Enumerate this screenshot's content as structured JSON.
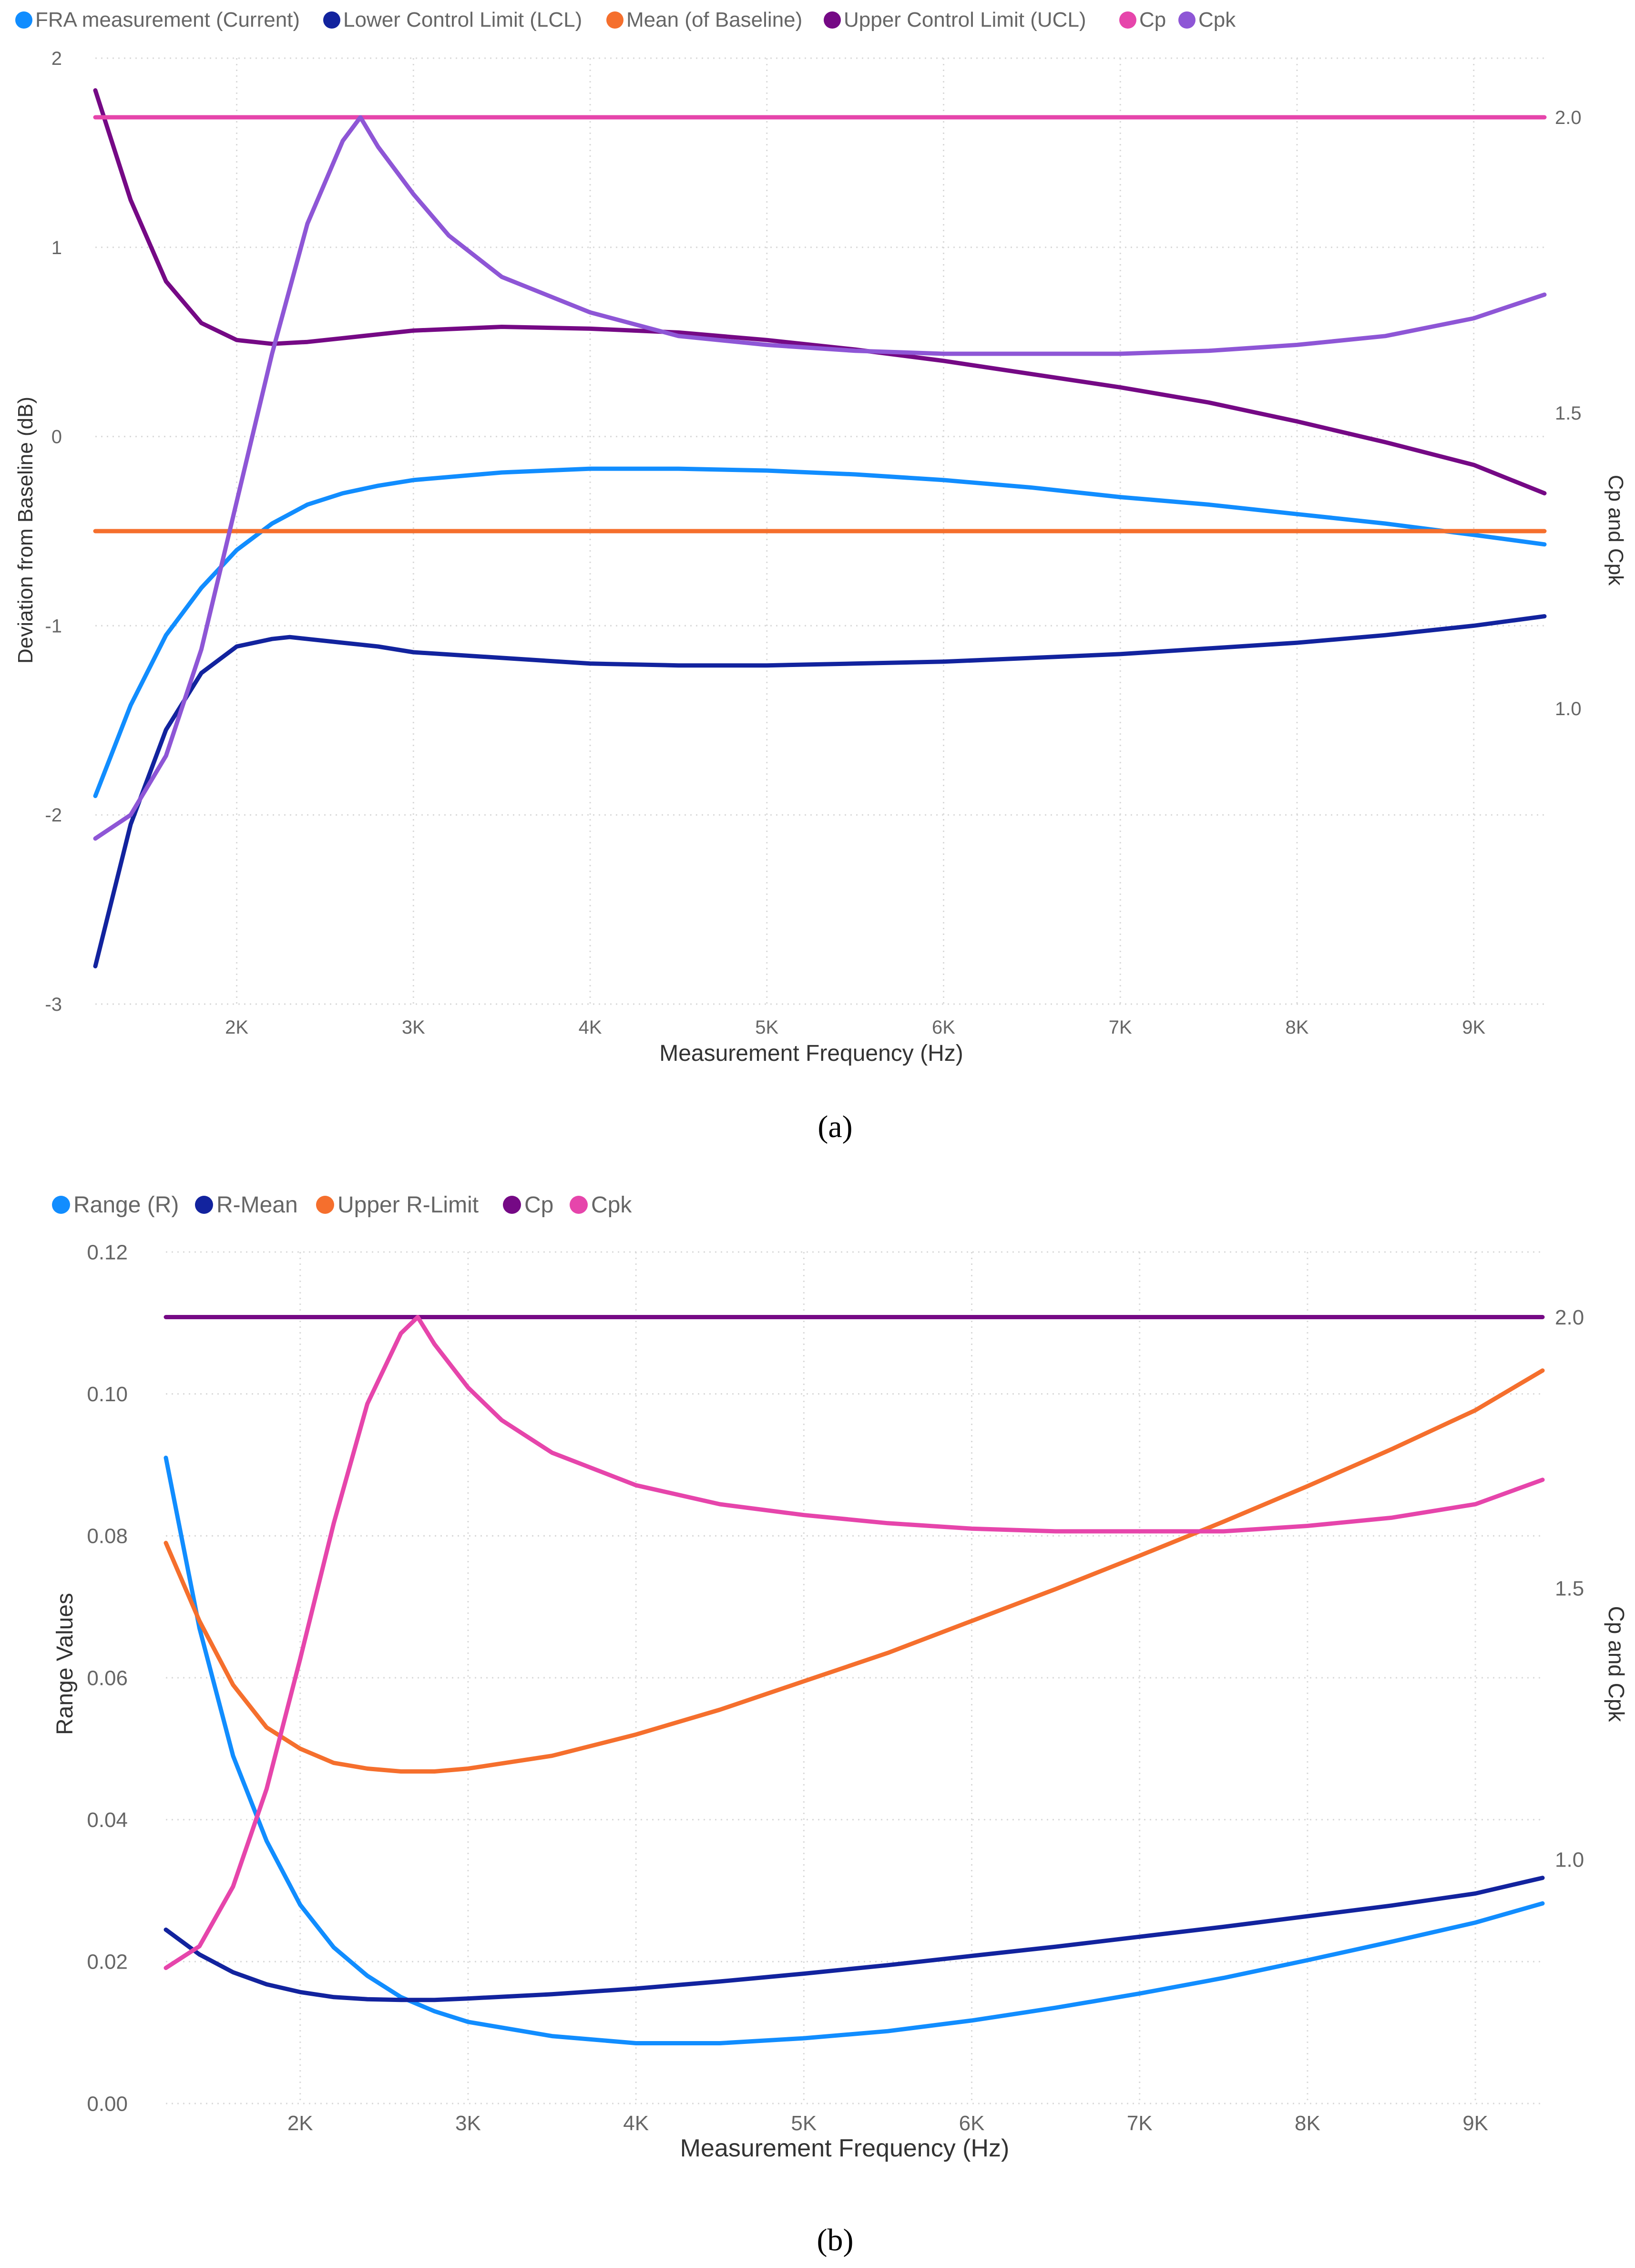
{
  "panels": [
    {
      "caption": "(a)",
      "legend": [
        {
          "label": "FRA measurement (Current)",
          "color": "#118DFF"
        },
        {
          "label": "Lower Control Limit (LCL)",
          "color": "#12239E"
        },
        {
          "label": "Mean (of Baseline)",
          "color": "#F56F2D"
        },
        {
          "label": "Upper Control Limit (UCL)",
          "color": "#750985"
        },
        {
          "label": "Cp",
          "color": "#E645AB"
        },
        {
          "label": "Cpk",
          "color": "#8E56D6"
        }
      ]
    },
    {
      "caption": "(b)",
      "legend": [
        {
          "label": "Range (R)",
          "color": "#118DFF"
        },
        {
          "label": "R-Mean",
          "color": "#12239E"
        },
        {
          "label": "Upper R-Limit",
          "color": "#F56F2D"
        },
        {
          "label": "Cp",
          "color": "#750985"
        },
        {
          "label": "Cpk",
          "color": "#E645AB"
        }
      ]
    }
  ],
  "chart_data": [
    {
      "type": "line",
      "title": "",
      "xlabel": "Measurement Frequency (Hz)",
      "ylabel": "Deviation from Baseline (dB)",
      "y2label": "Cp and Cpk",
      "xlim": [
        1200,
        9400
      ],
      "ylim": [
        -3,
        2
      ],
      "y2lim": [
        0.5,
        2.1
      ],
      "xticks": [
        2000,
        3000,
        4000,
        5000,
        6000,
        7000,
        8000,
        9000
      ],
      "xtick_labels": [
        "2K",
        "3K",
        "4K",
        "5K",
        "6K",
        "7K",
        "8K",
        "9K"
      ],
      "yticks": [
        -3,
        -2,
        -1,
        0,
        1,
        2
      ],
      "ytick_labels": [
        "-3",
        "-2",
        "-1",
        "0",
        "1",
        "2"
      ],
      "y2ticks": [
        1.0,
        1.5,
        2.0
      ],
      "y2tick_labels": [
        "1.0",
        "1.5",
        "2.0"
      ],
      "grid": true,
      "series": [
        {
          "name": "FRA measurement (Current)",
          "color": "#118DFF",
          "axis": "left",
          "x": [
            1200,
            1400,
            1600,
            1800,
            2000,
            2200,
            2400,
            2600,
            2800,
            3000,
            3500,
            4000,
            4500,
            5000,
            5500,
            6000,
            6500,
            7000,
            7500,
            8000,
            8500,
            9000,
            9400
          ],
          "y": [
            -1.9,
            -1.42,
            -1.05,
            -0.8,
            -0.6,
            -0.46,
            -0.36,
            -0.3,
            -0.26,
            -0.23,
            -0.19,
            -0.17,
            -0.17,
            -0.18,
            -0.2,
            -0.23,
            -0.27,
            -0.32,
            -0.36,
            -0.41,
            -0.46,
            -0.52,
            -0.57
          ]
        },
        {
          "name": "Lower Control Limit (LCL)",
          "color": "#12239E",
          "axis": "left",
          "x": [
            1200,
            1400,
            1600,
            1800,
            2000,
            2200,
            2300,
            2400,
            2600,
            2800,
            3000,
            3500,
            4000,
            4500,
            5000,
            5500,
            6000,
            6500,
            7000,
            7500,
            8000,
            8500,
            9000,
            9400
          ],
          "y": [
            -2.8,
            -2.05,
            -1.55,
            -1.25,
            -1.11,
            -1.07,
            -1.06,
            -1.07,
            -1.09,
            -1.11,
            -1.14,
            -1.17,
            -1.2,
            -1.21,
            -1.21,
            -1.2,
            -1.19,
            -1.17,
            -1.15,
            -1.12,
            -1.09,
            -1.05,
            -1.0,
            -0.95
          ]
        },
        {
          "name": "Mean (of Baseline)",
          "color": "#F56F2D",
          "axis": "left",
          "x": [
            1200,
            9400
          ],
          "y": [
            -0.5,
            -0.5
          ]
        },
        {
          "name": "Upper Control Limit (UCL)",
          "color": "#750985",
          "axis": "left",
          "x": [
            1200,
            1400,
            1600,
            1800,
            2000,
            2200,
            2400,
            2600,
            2800,
            3000,
            3500,
            4000,
            4500,
            5000,
            5500,
            6000,
            6500,
            7000,
            7500,
            8000,
            8500,
            9000,
            9400
          ],
          "y": [
            1.83,
            1.25,
            0.82,
            0.6,
            0.51,
            0.49,
            0.5,
            0.52,
            0.54,
            0.56,
            0.58,
            0.57,
            0.55,
            0.51,
            0.46,
            0.4,
            0.33,
            0.26,
            0.18,
            0.08,
            -0.03,
            -0.15,
            -0.3
          ]
        },
        {
          "name": "Cp",
          "color": "#E645AB",
          "axis": "right",
          "x": [
            1200,
            9400
          ],
          "y": [
            2.0,
            2.0
          ]
        },
        {
          "name": "Cpk",
          "color": "#8E56D6",
          "axis": "right",
          "x": [
            1200,
            1400,
            1600,
            1800,
            2000,
            2200,
            2400,
            2600,
            2700,
            2800,
            3000,
            3200,
            3500,
            4000,
            4500,
            5000,
            5500,
            6000,
            6500,
            7000,
            7500,
            8000,
            8500,
            9000,
            9400
          ],
          "y": [
            0.78,
            0.82,
            0.92,
            1.1,
            1.35,
            1.6,
            1.82,
            1.96,
            2.0,
            1.95,
            1.87,
            1.8,
            1.73,
            1.67,
            1.63,
            1.615,
            1.605,
            1.6,
            1.6,
            1.6,
            1.605,
            1.615,
            1.63,
            1.66,
            1.7
          ]
        }
      ]
    },
    {
      "type": "line",
      "title": "",
      "xlabel": "Measurement Frequency (Hz)",
      "ylabel": "Range Values",
      "y2label": "Cp and Cpk",
      "xlim": [
        1200,
        9400
      ],
      "ylim": [
        0,
        0.12
      ],
      "y2lim": [
        0.55,
        2.12
      ],
      "xticks": [
        2000,
        3000,
        4000,
        5000,
        6000,
        7000,
        8000,
        9000
      ],
      "xtick_labels": [
        "2K",
        "3K",
        "4K",
        "5K",
        "6K",
        "7K",
        "8K",
        "9K"
      ],
      "yticks": [
        0,
        0.02,
        0.04,
        0.06,
        0.08,
        0.1,
        0.12
      ],
      "ytick_labels": [
        "0.00",
        "0.02",
        "0.04",
        "0.06",
        "0.08",
        "0.10",
        "0.12"
      ],
      "y2ticks": [
        1.0,
        1.5,
        2.0
      ],
      "y2tick_labels": [
        "1.0",
        "1.5",
        "2.0"
      ],
      "grid": true,
      "series": [
        {
          "name": "Range (R)",
          "color": "#118DFF",
          "axis": "left",
          "x": [
            1200,
            1400,
            1600,
            1800,
            2000,
            2200,
            2400,
            2600,
            2800,
            3000,
            3500,
            4000,
            4500,
            5000,
            5500,
            6000,
            6500,
            7000,
            7500,
            8000,
            8500,
            9000,
            9400
          ],
          "y": [
            0.091,
            0.067,
            0.049,
            0.037,
            0.028,
            0.022,
            0.018,
            0.015,
            0.013,
            0.0115,
            0.0095,
            0.0085,
            0.0085,
            0.0092,
            0.0102,
            0.0117,
            0.0135,
            0.0155,
            0.0177,
            0.0202,
            0.0228,
            0.0255,
            0.0282
          ]
        },
        {
          "name": "R-Mean",
          "color": "#12239E",
          "axis": "left",
          "x": [
            1200,
            1400,
            1600,
            1800,
            2000,
            2200,
            2400,
            2600,
            2800,
            3000,
            3500,
            4000,
            4500,
            5000,
            5500,
            6000,
            6500,
            7000,
            7500,
            8000,
            8500,
            9000,
            9400
          ],
          "y": [
            0.0245,
            0.021,
            0.0185,
            0.0168,
            0.0157,
            0.015,
            0.0147,
            0.0146,
            0.0146,
            0.0148,
            0.0154,
            0.0162,
            0.0172,
            0.0183,
            0.0195,
            0.0208,
            0.0221,
            0.0235,
            0.0249,
            0.0264,
            0.0279,
            0.0296,
            0.0318
          ]
        },
        {
          "name": "Upper R-Limit",
          "color": "#F56F2D",
          "axis": "left",
          "x": [
            1200,
            1400,
            1600,
            1800,
            2000,
            2200,
            2400,
            2600,
            2800,
            3000,
            3500,
            4000,
            4500,
            5000,
            5500,
            6000,
            6500,
            7000,
            7500,
            8000,
            8500,
            9000,
            9400
          ],
          "y": [
            0.079,
            0.068,
            0.059,
            0.053,
            0.05,
            0.048,
            0.0472,
            0.0468,
            0.0468,
            0.0472,
            0.049,
            0.052,
            0.0555,
            0.0595,
            0.0635,
            0.068,
            0.0725,
            0.0772,
            0.082,
            0.087,
            0.0922,
            0.0977,
            0.1033
          ]
        },
        {
          "name": "Cp",
          "color": "#750985",
          "axis": "right",
          "x": [
            1200,
            9400
          ],
          "y": [
            2.0,
            2.0
          ]
        },
        {
          "name": "Cpk",
          "color": "#E645AB",
          "axis": "right",
          "x": [
            1200,
            1400,
            1600,
            1800,
            2000,
            2200,
            2400,
            2600,
            2700,
            2800,
            3000,
            3200,
            3500,
            4000,
            4500,
            5000,
            5500,
            6000,
            6500,
            7000,
            7500,
            8000,
            8500,
            9000,
            9400
          ],
          "y": [
            0.8,
            0.84,
            0.95,
            1.13,
            1.37,
            1.62,
            1.84,
            1.97,
            2.0,
            1.95,
            1.87,
            1.81,
            1.75,
            1.69,
            1.655,
            1.635,
            1.62,
            1.61,
            1.605,
            1.605,
            1.605,
            1.615,
            1.63,
            1.655,
            1.7
          ]
        }
      ]
    }
  ]
}
